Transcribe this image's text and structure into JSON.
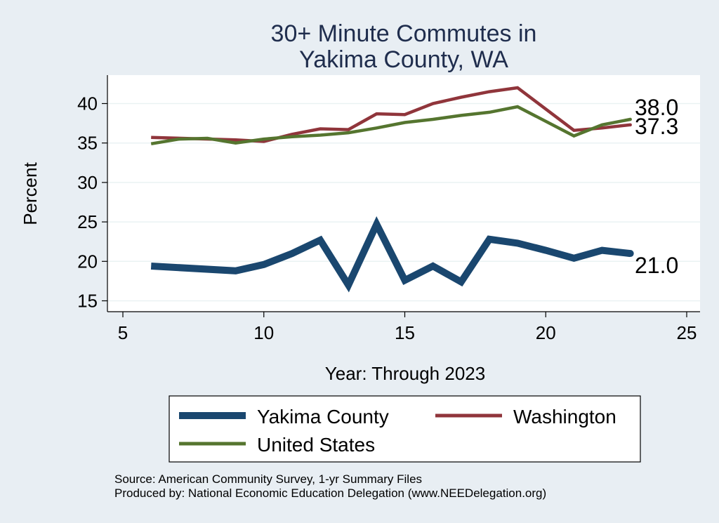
{
  "chart_data": {
    "type": "line",
    "title": [
      "30+ Minute Commutes in",
      "Yakima County, WA"
    ],
    "xlabel": "Year: Through 2023",
    "ylabel": "Percent",
    "xlim": [
      5,
      25
    ],
    "ylim": [
      14,
      43
    ],
    "xticks": [
      5,
      10,
      15,
      20,
      25
    ],
    "yticks": [
      15,
      20,
      25,
      30,
      35,
      40
    ],
    "grid": true,
    "legend": "bottom",
    "series": [
      {
        "name": "Yakima County",
        "color": "#1a476f",
        "x": [
          6,
          9,
          10,
          11,
          12,
          13,
          14,
          15,
          16,
          17,
          18,
          19,
          20,
          21,
          22,
          23
        ],
        "y": [
          19.4,
          18.8,
          19.6,
          21.0,
          22.7,
          17.0,
          24.7,
          17.6,
          19.4,
          17.4,
          22.8,
          22.3,
          21.4,
          20.4,
          21.4,
          21.0
        ],
        "end_label": "21.0"
      },
      {
        "name": "Washington",
        "color": "#90353b",
        "x": [
          6,
          9,
          10,
          11,
          12,
          13,
          14,
          15,
          16,
          17,
          18,
          19,
          21,
          22,
          23
        ],
        "y": [
          35.7,
          35.4,
          35.2,
          36.1,
          36.8,
          36.7,
          38.7,
          38.6,
          40.0,
          40.8,
          41.5,
          42.0,
          36.6,
          36.9,
          37.3
        ],
        "end_label": "37.3"
      },
      {
        "name": "United States",
        "color": "#55752f",
        "x": [
          6,
          7,
          8,
          9,
          10,
          11,
          12,
          13,
          14,
          15,
          16,
          17,
          18,
          19,
          21,
          22,
          23
        ],
        "y": [
          34.9,
          35.5,
          35.6,
          35.0,
          35.5,
          35.8,
          36.0,
          36.3,
          36.9,
          37.6,
          38.0,
          38.5,
          38.9,
          39.6,
          35.9,
          37.3,
          38.0
        ],
        "end_label": "38.0"
      }
    ],
    "notes": [
      "Source: American Community Survey, 1-yr Summary Files",
      "Produced by: National Economic Education Delegation (www.NEEDelegation.org)"
    ]
  }
}
